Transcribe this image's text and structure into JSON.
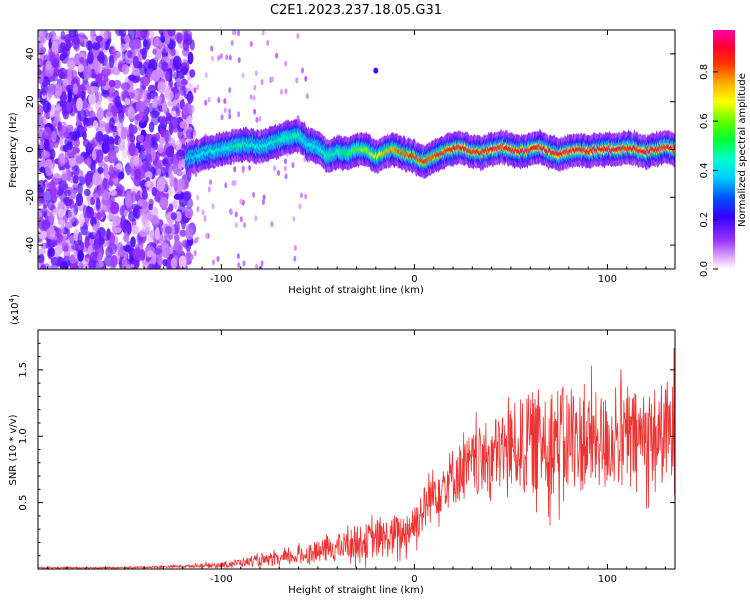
{
  "title": "C2E1.2023.237.18.05.G31",
  "chart_data": [
    {
      "type": "heatmap",
      "xlabel": "Height of straight line (km)",
      "ylabel": "Frequency (Hz)",
      "xlim": [
        -195,
        135
      ],
      "ylim": [
        -50,
        50
      ],
      "xticks": [
        -100,
        0,
        100
      ],
      "xtick_labels": [
        "-100",
        "0",
        "100"
      ],
      "yticks": [
        -40,
        -20,
        0,
        20,
        40
      ],
      "ytick_labels": [
        "-40",
        "-20",
        "0",
        "20",
        "40"
      ],
      "colorbar": {
        "label": "Normalized spectral amplitude",
        "range": [
          0,
          0.97
        ],
        "ticks": [
          0.0,
          0.2,
          0.4,
          0.6,
          0.8
        ],
        "tick_labels": [
          "0.0",
          "0.2",
          "0.4",
          "0.6",
          "0.8"
        ],
        "colormap": "rainbow (white-violet-blue-cyan-green-yellow-red-magenta)"
      },
      "ridge": {
        "x": [
          -118,
          -110,
          -100,
          -90,
          -80,
          -70,
          -60,
          -55,
          -50,
          -45,
          -40,
          -35,
          -30,
          -25,
          -20,
          -15,
          -10,
          -5,
          0,
          5,
          10,
          15,
          20,
          25,
          30,
          35,
          40,
          45,
          50,
          55,
          60,
          65,
          70,
          75,
          80,
          85,
          90,
          95,
          100,
          105,
          110,
          115,
          120,
          125,
          130,
          135
        ],
        "freq": [
          -4,
          -2,
          0,
          2,
          1,
          4,
          6,
          2,
          1,
          -3,
          -1,
          -2,
          0,
          0,
          -3,
          -1,
          0,
          -2,
          -3,
          -5,
          -3,
          -1,
          0,
          1,
          -1,
          -1,
          0,
          1,
          0,
          -1,
          0,
          1,
          -1,
          -2,
          -1,
          0,
          -1,
          0,
          0,
          0,
          1,
          0,
          -1,
          0,
          1,
          0
        ],
        "amplitude": [
          0.4,
          0.45,
          0.45,
          0.5,
          0.45,
          0.5,
          0.5,
          0.45,
          0.45,
          0.5,
          0.5,
          0.55,
          0.6,
          0.65,
          0.7,
          0.75,
          0.8,
          0.85,
          0.85,
          0.85,
          0.85,
          0.88,
          0.9,
          0.9,
          0.9,
          0.9,
          0.92,
          0.92,
          0.92,
          0.92,
          0.92,
          0.92,
          0.92,
          0.92,
          0.92,
          0.92,
          0.92,
          0.92,
          0.92,
          0.92,
          0.92,
          0.92,
          0.92,
          0.92,
          0.92,
          0.92
        ]
      },
      "noise_region_x": [
        -195,
        -115
      ]
    },
    {
      "type": "line",
      "xlabel": "Height of straight line (km)",
      "ylabel": "SNR (10 * v/v)",
      "y_scale_note": "(x10",
      "y_scale_exp": "4",
      "y_scale_close": ")",
      "xlim": [
        -195,
        135
      ],
      "ylim": [
        0,
        1.8
      ],
      "xticks": [
        -100,
        0,
        100
      ],
      "xtick_labels": [
        "-100",
        "0",
        "100"
      ],
      "yticks": [
        0.5,
        1.0,
        1.5
      ],
      "ytick_labels": [
        "0.5",
        "1.0",
        "1.5"
      ],
      "color": "#ee3333",
      "series": [
        {
          "x": [
            -195,
            -150,
            -120,
            -100,
            -90,
            -80,
            -70,
            -60,
            -50,
            -40,
            -30,
            -20,
            -10,
            -5,
            0,
            5,
            10,
            20,
            30,
            40,
            50,
            60,
            70,
            80,
            90,
            100,
            110,
            120,
            130,
            135
          ],
          "y": [
            0.01,
            0.01,
            0.02,
            0.03,
            0.05,
            0.06,
            0.07,
            0.1,
            0.13,
            0.16,
            0.2,
            0.22,
            0.24,
            0.28,
            0.35,
            0.45,
            0.58,
            0.7,
            0.78,
            0.85,
            0.92,
            0.95,
            0.98,
            0.97,
            0.96,
            0.97,
            0.98,
            1.0,
            1.02,
            1.0
          ],
          "spread": [
            0.005,
            0.005,
            0.01,
            0.02,
            0.03,
            0.04,
            0.05,
            0.06,
            0.08,
            0.1,
            0.12,
            0.14,
            0.15,
            0.15,
            0.16,
            0.18,
            0.2,
            0.22,
            0.25,
            0.28,
            0.32,
            0.38,
            0.42,
            0.4,
            0.38,
            0.35,
            0.35,
            0.35,
            0.4,
            0.45
          ]
        }
      ]
    }
  ]
}
